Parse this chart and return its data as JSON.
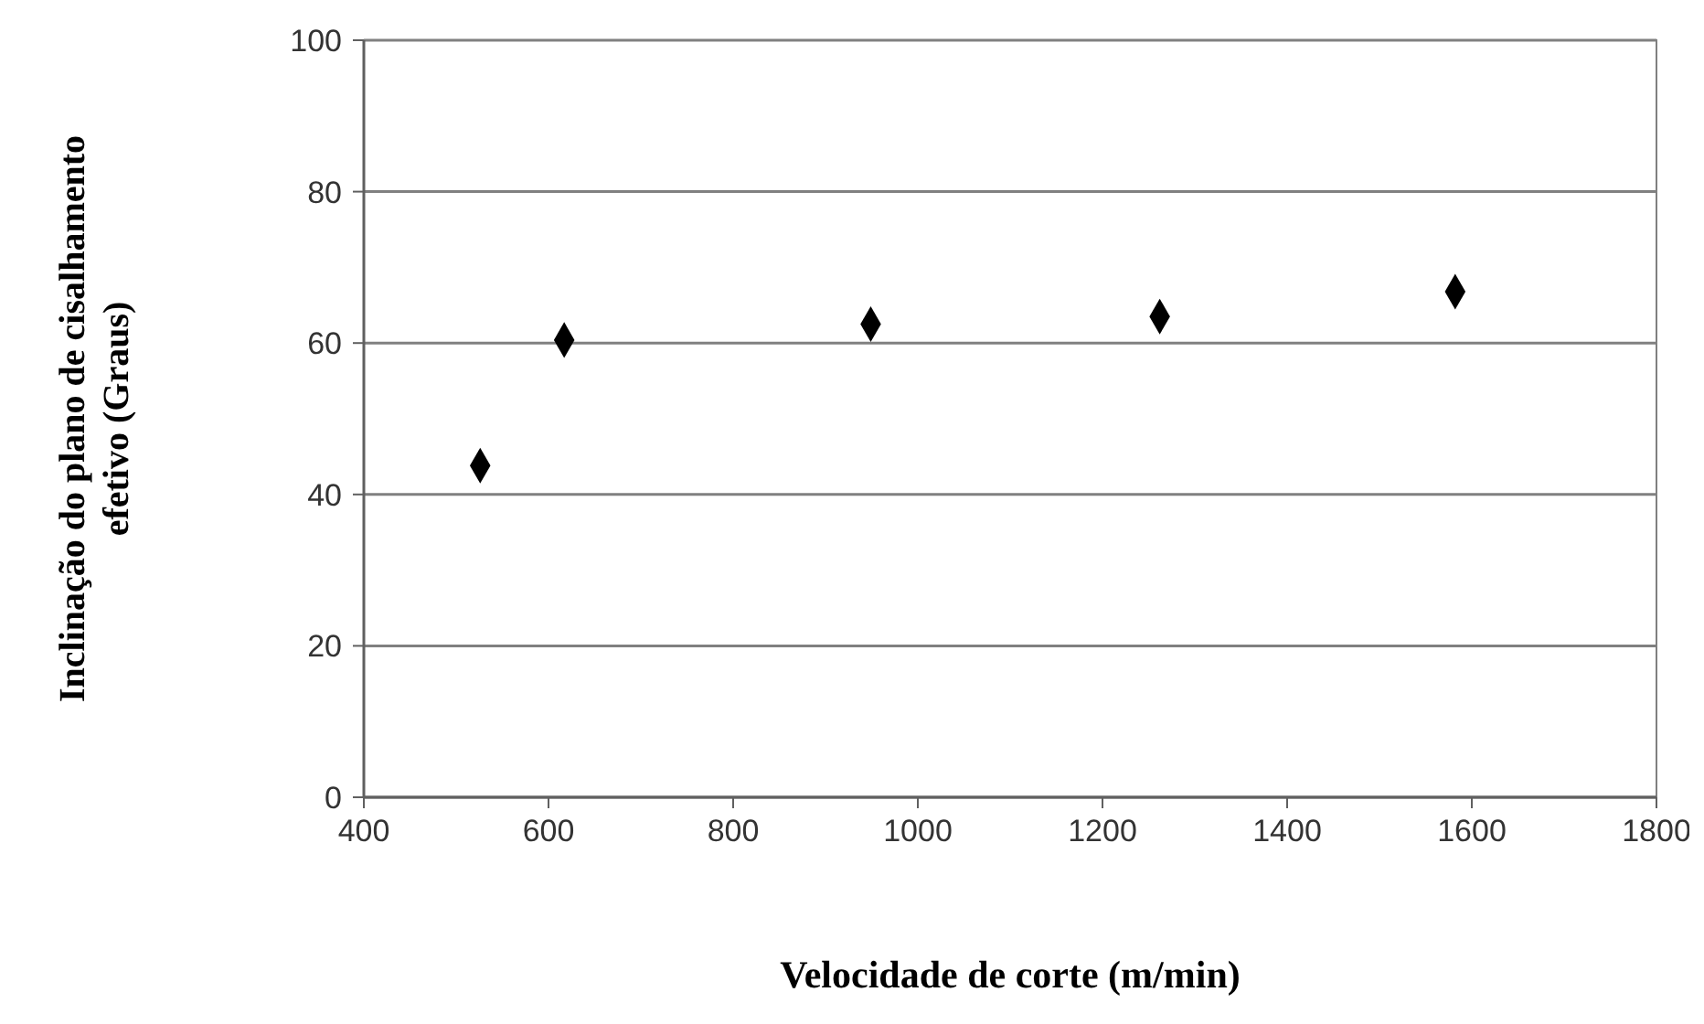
{
  "chart_data": {
    "type": "scatter",
    "xlabel": "Velocidade de corte (m/min)",
    "ylabel": "Inclinação do plano de cisalhamento efetivo (Graus)",
    "x": [
      526,
      617,
      949,
      1262,
      1582
    ],
    "values": [
      43.8,
      60.4,
      62.5,
      63.5,
      66.8
    ],
    "color": "#000000",
    "marker": "diamond",
    "xlim": [
      400,
      1800
    ],
    "xticks": [
      400,
      600,
      800,
      1000,
      1200,
      1400,
      1600,
      1800
    ],
    "ylim": [
      0,
      100
    ],
    "yticks": [
      0,
      20,
      40,
      60,
      80,
      100
    ],
    "grid": "y"
  }
}
